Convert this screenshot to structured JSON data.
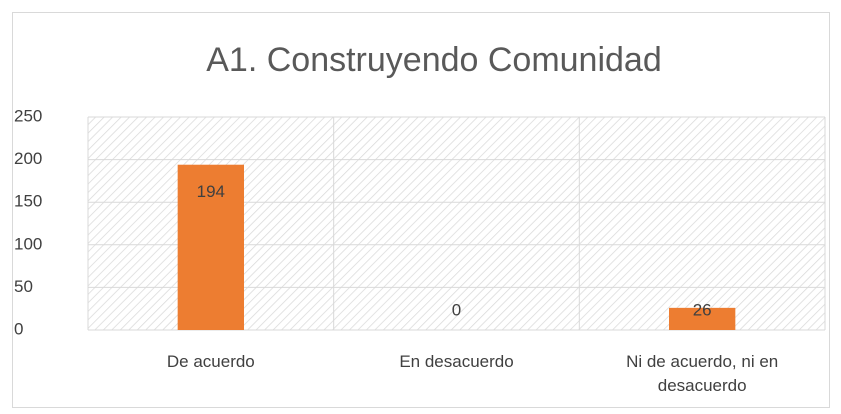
{
  "chart_data": {
    "type": "bar",
    "title": "A1. Construyendo Comunidad",
    "categories": [
      "De acuerdo",
      "En desacuerdo",
      "Ni de acuerdo, ni en desacuerdo"
    ],
    "values": [
      194,
      0,
      26
    ],
    "color": "#ed7d31",
    "ylim": [
      0,
      250
    ],
    "yticks": [
      0,
      50,
      100,
      150,
      200,
      250
    ],
    "grid": true
  }
}
